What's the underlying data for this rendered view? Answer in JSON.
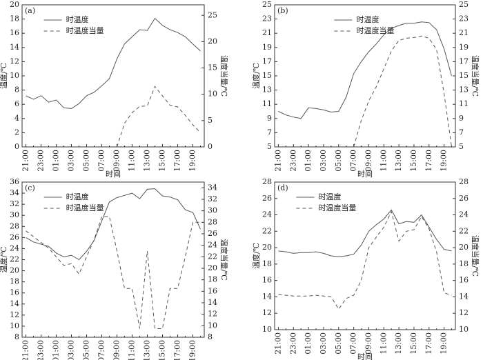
{
  "chart_data": [
    {
      "type": "line",
      "title": "(a)",
      "xlabel": "时间",
      "ylabel": "温度/℃",
      "y2label": "温度当量/℃",
      "legend": "upper left",
      "categories": [
        "21:00",
        null,
        "23:00",
        null,
        "01:00",
        null,
        "03:00",
        null,
        "05:00",
        null,
        "07:00",
        null,
        "09:00",
        null,
        "11:00",
        null,
        "13:00",
        null,
        "15:00",
        null,
        "17:00",
        null,
        "19:00",
        null
      ],
      "ylim": [
        0,
        20
      ],
      "yticks": [
        0,
        2,
        4,
        6,
        8,
        10,
        12,
        14,
        16,
        18,
        20
      ],
      "y2lim": [
        0,
        27
      ],
      "y2ticks": [
        0,
        5,
        10,
        15,
        20,
        25
      ],
      "series": [
        {
          "name": "时温度",
          "color": "#555555",
          "dash": "solid",
          "values": [
            7.2,
            6.7,
            7.2,
            6.3,
            6.6,
            5.5,
            5.4,
            6.1,
            7.2,
            7.7,
            8.6,
            9.6,
            12.4,
            14.5,
            15.5,
            16.5,
            16.4,
            18.1,
            17.1,
            16.5,
            16.1,
            15.5,
            14.5,
            13.5
          ]
        },
        {
          "name": "时温度当量",
          "color": "#555555",
          "dash": "dashed",
          "axis": "y2",
          "values": [
            null,
            null,
            null,
            null,
            null,
            null,
            null,
            null,
            null,
            null,
            null,
            null,
            0,
            4.5,
            6.5,
            7.7,
            7.8,
            11.5,
            9.7,
            7.9,
            7.6,
            6,
            4.2,
            2.7
          ]
        }
      ]
    },
    {
      "type": "line",
      "title": "(b)",
      "xlabel": "时间",
      "ylabel": "温度/℃",
      "y2label": "温度当量/℃",
      "legend": "upper center",
      "categories": [
        "21:00",
        null,
        "23:00",
        null,
        "01:00",
        null,
        "03:00",
        null,
        "05:00",
        null,
        "07:00",
        null,
        "09:00",
        null,
        "11:00",
        null,
        "13:00",
        null,
        "15:00",
        null,
        "17:00",
        null,
        "19:00",
        null
      ],
      "ylim": [
        5,
        25
      ],
      "yticks": [
        5,
        7,
        9,
        11,
        13,
        15,
        17,
        19,
        21,
        23,
        25
      ],
      "y2lim": [
        5,
        25
      ],
      "y2ticks": [
        5,
        7,
        9,
        11,
        13,
        15,
        17,
        19,
        21,
        23,
        25
      ],
      "series": [
        {
          "name": "时温度",
          "color": "#555555",
          "dash": "solid",
          "values": [
            10,
            9.5,
            9.2,
            9.0,
            10.5,
            10.4,
            10.2,
            9.9,
            10.0,
            12,
            15.3,
            17,
            18.4,
            19.5,
            20.8,
            21.7,
            22.1,
            22.4,
            22.4,
            22.6,
            22.5,
            21.5,
            18.8,
            15
          ]
        },
        {
          "name": "时温度当量",
          "color": "#555555",
          "dash": "dashed",
          "axis": "y2",
          "values": [
            null,
            null,
            null,
            null,
            null,
            null,
            null,
            null,
            null,
            null,
            5,
            8.7,
            11.5,
            13.5,
            16,
            18.5,
            20,
            20.3,
            20.4,
            20.6,
            20.3,
            18.7,
            12.5,
            5
          ]
        }
      ]
    },
    {
      "type": "line",
      "title": "(c)",
      "xlabel": "时间",
      "ylabel": "温度/℃",
      "y2label": "温度当量/℃",
      "legend": "upper left",
      "categories": [
        "21:00",
        null,
        "23:00",
        null,
        "01:00",
        null,
        "03:00",
        null,
        "05:00",
        null,
        "07:00",
        null,
        "09:00",
        null,
        "11:00",
        null,
        "13:00",
        null,
        "15:00",
        null,
        "17:00",
        null,
        "19:00",
        null
      ],
      "ylim": [
        8,
        36
      ],
      "yticks": [
        8,
        10,
        12,
        14,
        16,
        18,
        20,
        22,
        24,
        26,
        28,
        30,
        32,
        34,
        36
      ],
      "y2lim": [
        8,
        35
      ],
      "y2ticks": [
        8,
        10,
        12,
        14,
        16,
        18,
        20,
        22,
        24,
        26,
        28,
        30,
        32,
        34
      ],
      "series": [
        {
          "name": "时温度",
          "color": "#555555",
          "dash": "solid",
          "values": [
            26,
            25.2,
            24.8,
            24.4,
            23.2,
            22.5,
            22.8,
            22,
            23.5,
            25.5,
            29,
            32.4,
            33.2,
            33.6,
            34,
            33,
            34.7,
            34.8,
            33.5,
            33.3,
            32.8,
            31,
            30.5,
            27.5
          ]
        },
        {
          "name": "时温度当量",
          "color": "#555555",
          "dash": "dashed",
          "axis": "y2",
          "values": [
            26.5,
            25.5,
            24.5,
            23.5,
            22,
            20.5,
            20.8,
            19,
            22,
            25,
            29,
            29,
            23,
            16.5,
            16.5,
            9.5,
            23,
            9.5,
            9.5,
            16.5,
            16.5,
            22,
            28,
            28
          ]
        }
      ]
    },
    {
      "type": "line",
      "title": "(d)",
      "xlabel": "时间",
      "ylabel": "温度/℃",
      "y2label": "温度当量/℃",
      "legend": "upper left",
      "categories": [
        "21:00",
        null,
        "23:00",
        null,
        "01:00",
        null,
        "03:00",
        null,
        "05:00",
        null,
        "07:00",
        null,
        "09:00",
        null,
        "11:00",
        null,
        "13:00",
        null,
        "15:00",
        null,
        "17:00",
        null,
        "19:00",
        null
      ],
      "ylim": [
        10,
        28
      ],
      "yticks": [
        10,
        12,
        14,
        16,
        18,
        20,
        22,
        24,
        26,
        28
      ],
      "y2lim": [
        10,
        28
      ],
      "y2ticks": [
        10,
        12,
        14,
        16,
        18,
        20,
        22,
        24,
        26,
        28
      ],
      "series": [
        {
          "name": "时温度",
          "color": "#555555",
          "dash": "solid",
          "values": [
            19.6,
            19.5,
            19.3,
            19.4,
            19.4,
            19.5,
            19.3,
            19,
            18.9,
            19,
            19.2,
            20.3,
            22,
            22.8,
            23.5,
            24.6,
            22.9,
            23.2,
            23.1,
            24,
            22.5,
            21,
            19.8,
            19.6
          ]
        },
        {
          "name": "时温度当量",
          "color": "#555555",
          "dash": "dashed",
          "axis": "y2",
          "values": [
            14.3,
            14.2,
            14.1,
            14.1,
            14.1,
            14.2,
            14.1,
            14,
            12.5,
            13.8,
            14.2,
            16,
            20,
            21.3,
            22.5,
            24.4,
            20.8,
            22,
            22.2,
            23.8,
            22.3,
            19.5,
            14.5,
            14.2
          ]
        }
      ]
    }
  ]
}
